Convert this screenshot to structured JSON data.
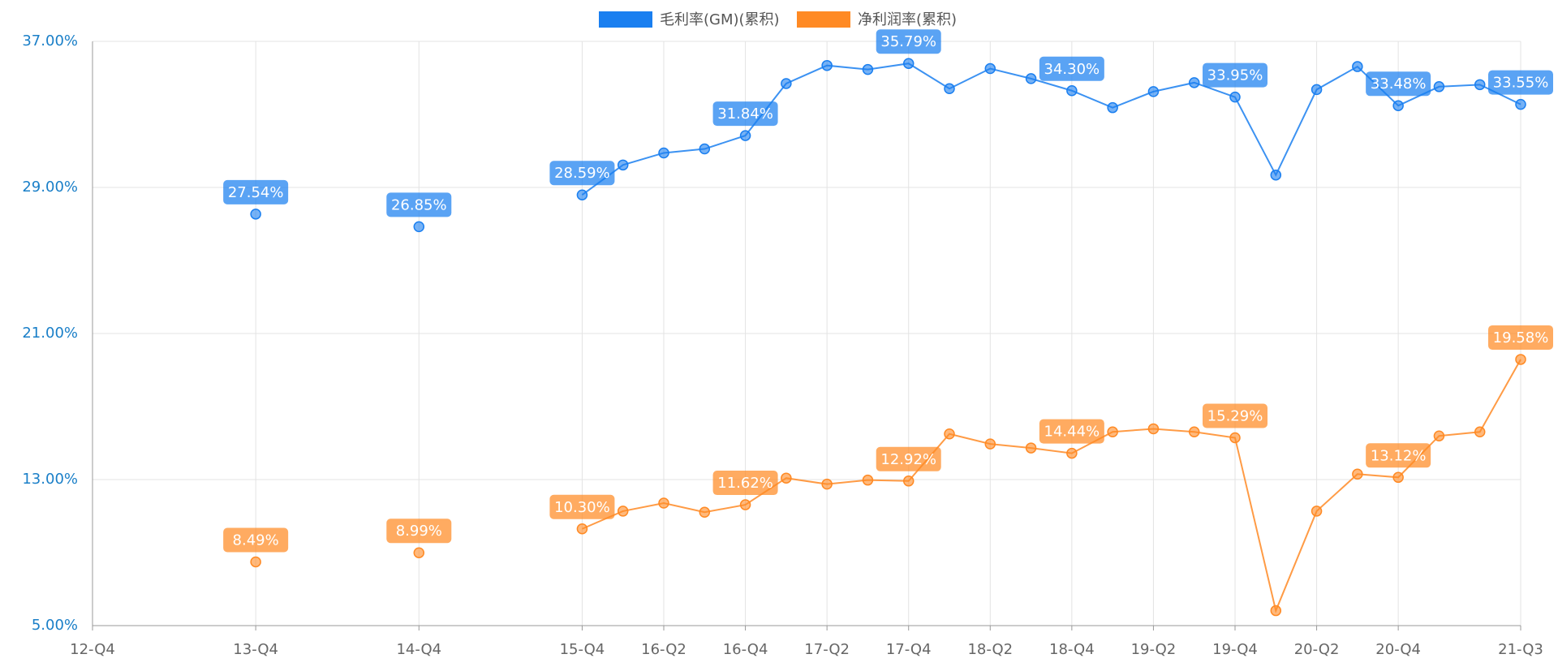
{
  "chart_data": {
    "type": "line",
    "categories": [
      "12-Q4",
      null,
      null,
      null,
      "13-Q4",
      null,
      null,
      null,
      "14-Q4",
      null,
      null,
      null,
      "15-Q4",
      null,
      "16-Q2",
      null,
      "16-Q4",
      null,
      "17-Q2",
      null,
      "17-Q4",
      null,
      "18-Q2",
      null,
      "18-Q4",
      null,
      "19-Q2",
      null,
      "19-Q4",
      null,
      "20-Q2",
      null,
      "20-Q4",
      null,
      null,
      "21-Q3"
    ],
    "series": [
      {
        "name": "毛利率(GM)(累积)",
        "color": "#1a7ff0",
        "values": [
          null,
          null,
          null,
          null,
          27.54,
          null,
          null,
          null,
          26.85,
          null,
          null,
          null,
          28.59,
          30.23,
          30.89,
          31.11,
          31.84,
          34.69,
          35.68,
          35.46,
          35.79,
          34.41,
          35.51,
          34.96,
          34.3,
          33.37,
          34.25,
          34.74,
          33.95,
          29.68,
          34.36,
          35.62,
          33.48,
          34.52,
          34.63,
          33.55
        ],
        "value_labels": [
          null,
          null,
          null,
          null,
          "27.54%",
          null,
          null,
          null,
          "26.85%",
          null,
          null,
          null,
          "28.59%",
          null,
          null,
          null,
          "31.84%",
          null,
          null,
          null,
          "35.79%",
          null,
          null,
          null,
          "34.30%",
          null,
          null,
          null,
          "33.95%",
          null,
          null,
          null,
          "33.48%",
          null,
          null,
          "33.55%"
        ]
      },
      {
        "name": "净利润率(累积)",
        "color": "#ff8a24",
        "values": [
          null,
          null,
          null,
          null,
          8.49,
          null,
          null,
          null,
          8.99,
          null,
          null,
          null,
          10.3,
          11.27,
          11.71,
          11.21,
          11.62,
          13.08,
          12.75,
          12.97,
          12.92,
          15.5,
          14.95,
          14.73,
          14.44,
          15.61,
          15.78,
          15.61,
          15.29,
          5.82,
          11.27,
          13.3,
          13.12,
          15.39,
          15.61,
          19.58
        ],
        "value_labels": [
          null,
          null,
          null,
          null,
          "8.49%",
          null,
          null,
          null,
          "8.99%",
          null,
          null,
          null,
          "10.30%",
          null,
          null,
          null,
          "11.62%",
          null,
          null,
          null,
          "12.92%",
          null,
          null,
          null,
          "14.44%",
          null,
          null,
          null,
          "15.29%",
          null,
          null,
          null,
          "13.12%",
          null,
          null,
          "19.58%"
        ]
      }
    ],
    "ylim": [
      5,
      37
    ],
    "yticks": [
      {
        "value": 5,
        "label": "5.00%"
      },
      {
        "value": 13,
        "label": "13.00%"
      },
      {
        "value": 21,
        "label": "21.00%"
      },
      {
        "value": 29,
        "label": "29.00%"
      },
      {
        "value": 37,
        "label": "37.00%"
      }
    ],
    "grid": true,
    "legend": "top"
  }
}
